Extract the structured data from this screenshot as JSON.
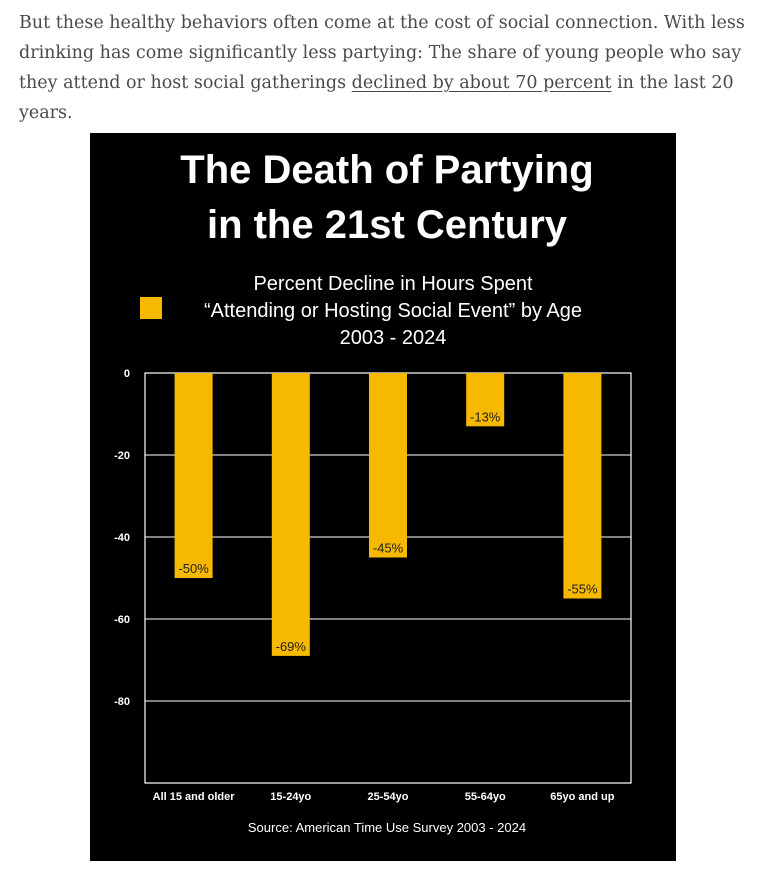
{
  "article": {
    "text_before": "But these healthy behaviors often come at the cost of social connection. With less drinking has come significantly less partying: The share of young people who say they attend or host social gatherings ",
    "link_text": "declined by about 70 percent",
    "text_after": " in the last 20 years."
  },
  "chart_data": {
    "type": "bar",
    "title_lines": [
      "The Death of Partying",
      "in the 21st Century"
    ],
    "legend_lines": [
      "Percent Decline in Hours Spent",
      "“Attending or Hosting Social Event” by Age",
      "2003 - 2024"
    ],
    "categories": [
      "All 15 and older",
      "15-24yo",
      "25-54yo",
      "55-64yo",
      "65yo and up"
    ],
    "values": [
      -50,
      -69,
      -45,
      -13,
      -55
    ],
    "data_labels": [
      "-50%",
      "-69%",
      "-45%",
      "-13%",
      "-55%"
    ],
    "ylim": [
      -100,
      0
    ],
    "yticks": [
      0,
      -20,
      -40,
      -60,
      -80
    ],
    "grid": true,
    "source": "Source: American Time Use Survey 2003 - 2024",
    "colors": {
      "bar": "#F7B800",
      "background": "#000000",
      "text": "#FFFFFF",
      "grid": "#FFFFFF",
      "label_text": "#222222"
    }
  }
}
